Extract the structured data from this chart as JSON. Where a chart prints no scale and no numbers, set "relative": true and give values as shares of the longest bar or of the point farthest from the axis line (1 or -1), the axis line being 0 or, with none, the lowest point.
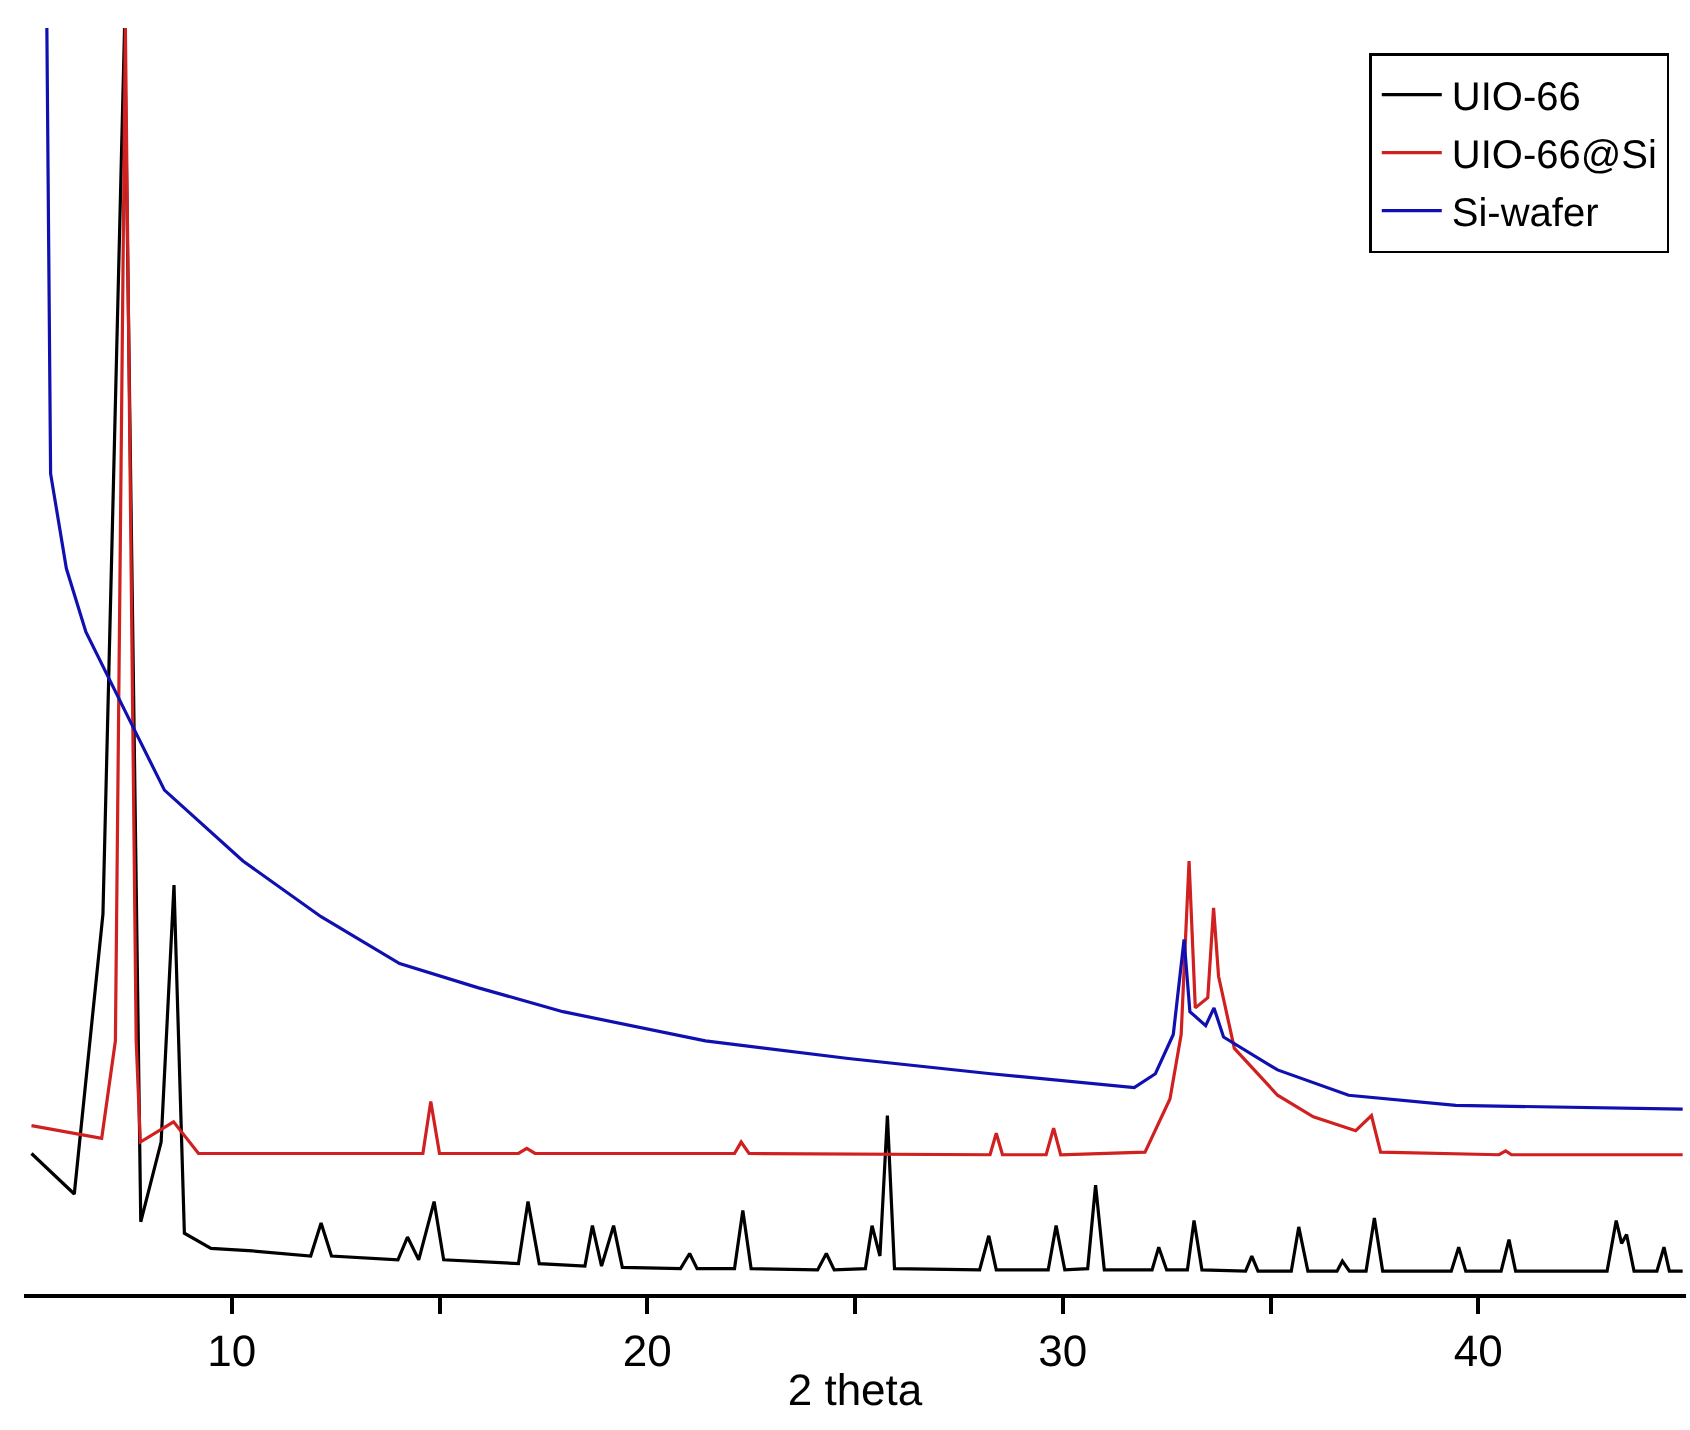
{
  "chart_data": {
    "type": "line",
    "xlabel": "2 theta",
    "relative": true,
    "xlim": [
      5,
      45
    ],
    "xticks": [
      10,
      {
        "value": 15,
        "label": null
      },
      20,
      {
        "value": 25,
        "label": null
      },
      30,
      {
        "value": 35,
        "label": null
      },
      40
    ],
    "legend": "top right",
    "marker": "none",
    "line_style": "solid",
    "tick_labels": "x",
    "series": [
      {
        "name": "UIO-66",
        "color": "#000000",
        "x": [
          5.18,
          6.21,
          6.9,
          7.42,
          7.81,
          8.3,
          8.61,
          8.86,
          9.5,
          10.5,
          11.9,
          12.15,
          12.4,
          14.0,
          14.23,
          14.5,
          14.87,
          15.1,
          16.9,
          17.13,
          17.4,
          18.5,
          18.68,
          18.9,
          19.19,
          19.4,
          20.8,
          21.02,
          21.2,
          22.1,
          22.3,
          22.5,
          24.1,
          24.31,
          24.5,
          25.25,
          25.41,
          25.6,
          25.78,
          25.95,
          28.0,
          28.22,
          28.4,
          29.65,
          29.84,
          30.05,
          30.6,
          30.79,
          31.0,
          32.15,
          32.31,
          32.5,
          33.0,
          33.16,
          33.35,
          34.4,
          34.55,
          34.7,
          35.5,
          35.68,
          35.9,
          36.6,
          36.73,
          36.9,
          37.3,
          37.5,
          37.7,
          39.35,
          39.53,
          39.7,
          40.55,
          40.74,
          40.9,
          43.1,
          43.32,
          43.45,
          43.57,
          43.75,
          44.3,
          44.47,
          44.6,
          44.92
        ],
        "values": [
          0.111,
          0.079,
          0.3,
          1,
          0.057,
          0.12,
          0.323,
          0.048,
          0.036,
          0.034,
          0.03,
          0.056,
          0.03,
          0.027,
          0.045,
          0.027,
          0.073,
          0.027,
          0.024,
          0.073,
          0.024,
          0.022,
          0.054,
          0.022,
          0.054,
          0.021,
          0.02,
          0.032,
          0.02,
          0.02,
          0.066,
          0.02,
          0.019,
          0.032,
          0.019,
          0.02,
          0.054,
          0.03,
          0.141,
          0.02,
          0.019,
          0.046,
          0.019,
          0.019,
          0.054,
          0.019,
          0.02,
          0.086,
          0.019,
          0.019,
          0.037,
          0.019,
          0.019,
          0.058,
          0.019,
          0.018,
          0.03,
          0.018,
          0.018,
          0.053,
          0.018,
          0.018,
          0.026,
          0.018,
          0.018,
          0.06,
          0.018,
          0.018,
          0.037,
          0.018,
          0.018,
          0.043,
          0.018,
          0.018,
          0.058,
          0.04,
          0.047,
          0.018,
          0.018,
          0.037,
          0.018,
          0.018
        ]
      },
      {
        "name": "UIO-66@Si",
        "color": "#d02020",
        "x": [
          5.18,
          6.87,
          7.2,
          7.44,
          7.7,
          7.8,
          8.6,
          9.2,
          14.6,
          14.79,
          15.0,
          16.9,
          17.1,
          17.3,
          22.1,
          22.26,
          22.45,
          28.25,
          28.4,
          28.55,
          29.6,
          29.78,
          29.95,
          31.98,
          32.58,
          32.85,
          33.04,
          33.19,
          33.49,
          33.63,
          33.75,
          34.13,
          35.17,
          36.03,
          37.05,
          37.43,
          37.65,
          40.5,
          40.66,
          40.8,
          44.92
        ],
        "values": [
          0.133,
          0.123,
          0.2,
          1,
          0.2,
          0.12,
          0.136,
          0.111,
          0.111,
          0.152,
          0.111,
          0.111,
          0.115,
          0.111,
          0.111,
          0.12,
          0.111,
          0.11,
          0.127,
          0.11,
          0.11,
          0.131,
          0.11,
          0.112,
          0.154,
          0.205,
          0.342,
          0.226,
          0.234,
          0.305,
          0.251,
          0.194,
          0.157,
          0.14,
          0.129,
          0.141,
          0.112,
          0.11,
          0.113,
          0.11,
          0.11
        ]
      },
      {
        "name": "Si-wafer",
        "color": "#1010b0",
        "x": [
          5.55,
          5.64,
          6.02,
          6.49,
          7.44,
          8.38,
          10.27,
          12.15,
          14.04,
          15.92,
          17.97,
          21.4,
          24.84,
          28.27,
          31.72,
          32.23,
          32.66,
          32.92,
          33.06,
          33.44,
          33.64,
          33.87,
          35.17,
          36.88,
          39.46,
          44.92
        ],
        "values": [
          1,
          0.648,
          0.573,
          0.523,
          0.46,
          0.398,
          0.342,
          0.298,
          0.261,
          0.242,
          0.223,
          0.2,
          0.186,
          0.174,
          0.163,
          0.174,
          0.205,
          0.28,
          0.223,
          0.212,
          0.226,
          0.203,
          0.177,
          0.157,
          0.149,
          0.146
        ]
      }
    ]
  }
}
